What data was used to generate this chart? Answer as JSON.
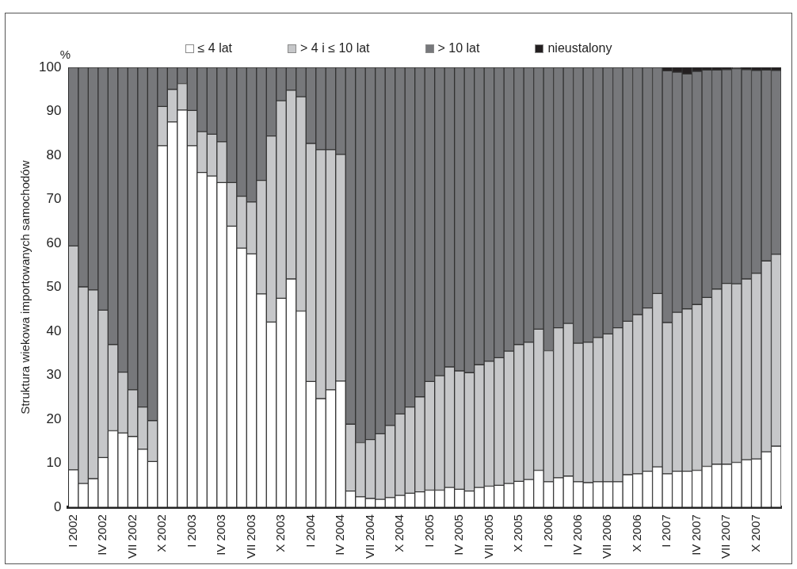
{
  "chart_data": {
    "type": "bar",
    "stacked": true,
    "ylabel": "Struktura wiekowa importowanych samochodów",
    "annotations": [
      "%"
    ],
    "categories": [
      "I 2002",
      null,
      null,
      "IV 2002",
      null,
      null,
      "VII 2002",
      null,
      null,
      "X 2002",
      null,
      null,
      "I 2003",
      null,
      null,
      "IV 2003",
      null,
      null,
      "VII 2003",
      null,
      null,
      "X 2003",
      null,
      null,
      "I 2004",
      null,
      null,
      "IV 2004",
      null,
      null,
      "VII 2004",
      null,
      null,
      "X 2004",
      null,
      null,
      "I 2005",
      null,
      null,
      "IV 2005",
      null,
      null,
      "VII 2005",
      null,
      null,
      "X 2005",
      null,
      null,
      "I 2006",
      null,
      null,
      "IV 2006",
      null,
      null,
      "VII 2006",
      null,
      null,
      "X 2006",
      null,
      null,
      "I 2007",
      null,
      null,
      "IV 2007",
      null,
      null,
      "VII 2007",
      null,
      null,
      "X 2007",
      null,
      null
    ],
    "series": [
      {
        "name": "≤ 4 lat",
        "color": "#ffffff",
        "values": [
          8.5,
          5.4,
          6.5,
          11.3,
          17.4,
          16.9,
          16.1,
          13.2,
          10.4,
          82.2,
          87.6,
          90.3,
          82.2,
          76.1,
          75.3,
          73.8,
          63.9,
          58.9,
          57.6,
          48.5,
          42.1,
          47.5,
          51.9,
          44.6,
          28.6,
          24.7,
          26.7,
          28.7,
          3.7,
          2.4,
          2.0,
          1.8,
          2.2,
          2.7,
          3.2,
          3.5,
          3.9,
          3.9,
          4.5,
          4.1,
          3.7,
          4.5,
          4.8,
          5.0,
          5.4,
          5.9,
          6.3,
          8.4,
          5.8,
          6.7,
          7.1,
          5.8,
          5.6,
          5.8,
          5.8,
          5.8,
          7.4,
          7.6,
          8.2,
          9.2,
          7.6,
          8.2,
          8.2,
          8.4,
          9.3,
          9.8,
          9.8,
          10.2,
          10.8,
          11.0,
          12.6,
          13.9
        ]
      },
      {
        "name": "> 4 i ≤ 10 lat",
        "color": "#c6c7c9",
        "values": [
          50.9,
          44.7,
          42.9,
          33.5,
          19.6,
          13.8,
          10.6,
          9.6,
          9.3,
          8.9,
          7.4,
          6.0,
          8.0,
          9.3,
          9.5,
          9.3,
          9.9,
          11.8,
          11.8,
          25.8,
          42.3,
          44.9,
          42.9,
          48.7,
          54.1,
          56.6,
          54.6,
          51.5,
          15.2,
          12.3,
          13.4,
          14.9,
          16.4,
          18.5,
          19.6,
          21.6,
          24.7,
          26.0,
          27.4,
          26.9,
          26.9,
          27.9,
          28.4,
          29.0,
          30.1,
          31.1,
          31.2,
          32.1,
          29.8,
          34.1,
          34.7,
          31.5,
          31.9,
          32.8,
          33.6,
          35.0,
          34.9,
          36.2,
          37.1,
          39.4,
          34.4,
          36.1,
          36.9,
          37.7,
          38.4,
          39.8,
          41.1,
          40.6,
          41.1,
          42.2,
          43.4,
          43.6
        ]
      },
      {
        "name": "> 10 lat",
        "color": "#77787b",
        "values": [
          40.6,
          49.9,
          50.6,
          55.2,
          63.0,
          69.3,
          73.3,
          77.2,
          80.3,
          8.9,
          5.0,
          3.7,
          9.8,
          14.6,
          15.2,
          16.9,
          26.2,
          29.3,
          30.6,
          25.7,
          15.6,
          7.6,
          5.2,
          6.7,
          17.3,
          18.7,
          18.7,
          19.8,
          81.1,
          85.3,
          84.6,
          83.3,
          81.4,
          78.8,
          77.2,
          74.9,
          71.4,
          70.1,
          68.1,
          69.0,
          69.4,
          67.6,
          66.8,
          66.0,
          64.5,
          63.0,
          62.5,
          59.5,
          64.4,
          59.2,
          58.2,
          62.7,
          62.5,
          61.4,
          60.6,
          59.2,
          57.7,
          56.2,
          54.7,
          51.4,
          57.2,
          54.6,
          53.4,
          53.0,
          51.7,
          49.8,
          48.6,
          48.9,
          47.6,
          46.1,
          43.4,
          41.8
        ]
      },
      {
        "name": "nieustalony",
        "color": "#231f20",
        "values": [
          0,
          0,
          0,
          0,
          0,
          0,
          0,
          0,
          0,
          0,
          0,
          0,
          0,
          0,
          0,
          0,
          0,
          0,
          0,
          0,
          0,
          0,
          0,
          0,
          0,
          0,
          0,
          0,
          0,
          0,
          0,
          0,
          0,
          0,
          0,
          0,
          0,
          0,
          0,
          0,
          0,
          0,
          0,
          0,
          0,
          0,
          0,
          0,
          0,
          0,
          0,
          0,
          0,
          0,
          0,
          0,
          0,
          0,
          0,
          0,
          0.8,
          1.1,
          1.5,
          0.9,
          0.6,
          0.6,
          0.5,
          0.3,
          0.5,
          0.7,
          0.6,
          0.7
        ]
      }
    ],
    "ylim": [
      0,
      100
    ],
    "yticks": [
      0,
      10,
      20,
      30,
      40,
      50,
      60,
      70,
      80,
      90,
      100
    ],
    "grid": false,
    "legend": "top"
  }
}
